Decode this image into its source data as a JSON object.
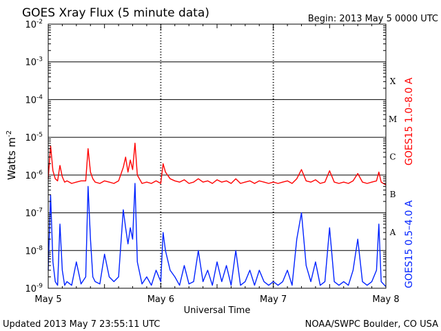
{
  "header": {
    "title": "GOES Xray Flux (5 minute data)",
    "begin": "Begin:  2013 May 5 0000 UTC"
  },
  "footer": {
    "updated": "Updated 2013 May  7 23:55:11 UTC",
    "credit": "NOAA/SWPC Boulder, CO USA"
  },
  "colors": {
    "long_channel": "#ff0000",
    "short_channel": "#0022ff",
    "axis": "#000000",
    "background": "#ffffff"
  },
  "chart_data": {
    "type": "line",
    "title": "GOES Xray Flux (5 minute data)",
    "xlabel": "Universal Time",
    "ylabel_base": "Watts m",
    "ylabel_sup": "-2",
    "yscale": "log",
    "ylim": [
      1e-09,
      0.01
    ],
    "xlim_hours": [
      0,
      72
    ],
    "grid": true,
    "x_ticks": [
      {
        "hour": 0,
        "label": "May 5"
      },
      {
        "hour": 24,
        "label": "May 6"
      },
      {
        "hour": 48,
        "label": "May 7"
      },
      {
        "hour": 72,
        "label": "May 8"
      }
    ],
    "y_ticks": [
      {
        "exp": -9,
        "base": "10",
        "sup": "-9"
      },
      {
        "exp": -8,
        "base": "10",
        "sup": "-8"
      },
      {
        "exp": -7,
        "base": "10",
        "sup": "-7"
      },
      {
        "exp": -6,
        "base": "10",
        "sup": "-6"
      },
      {
        "exp": -5,
        "base": "10",
        "sup": "-5"
      },
      {
        "exp": -4,
        "base": "10",
        "sup": "-4"
      },
      {
        "exp": -3,
        "base": "10",
        "sup": "-3"
      },
      {
        "exp": -2,
        "base": "10",
        "sup": "-2"
      }
    ],
    "flare_classes": [
      {
        "label": "A",
        "exp": -7.5
      },
      {
        "label": "B",
        "exp": -6.5
      },
      {
        "label": "C",
        "exp": -5.5
      },
      {
        "label": "M",
        "exp": -4.5
      },
      {
        "label": "X",
        "exp": -3.5
      }
    ],
    "series": [
      {
        "name": "GOES15 1.0–8.0 A",
        "color": "#ff0000",
        "x": [
          0,
          0.5,
          1,
          1.5,
          2,
          2.5,
          3,
          3.5,
          4,
          5,
          6,
          7,
          8,
          8.5,
          9,
          9.5,
          10,
          11,
          12,
          13,
          14,
          15,
          16,
          16.5,
          17,
          17.5,
          18,
          18.5,
          19,
          20,
          21,
          22,
          23,
          24,
          24.5,
          25,
          26,
          27,
          28,
          29,
          30,
          31,
          32,
          33,
          34,
          35,
          36,
          37,
          38,
          39,
          40,
          41,
          42,
          43,
          44,
          45,
          46,
          47,
          48,
          49,
          50,
          51,
          52,
          53,
          54,
          55,
          56,
          57,
          58,
          59,
          60,
          61,
          62,
          63,
          64,
          65,
          66,
          67,
          68,
          69,
          70,
          70.5,
          71,
          72
        ],
        "y": [
          8e-07,
          6e-06,
          1.3e-06,
          8e-07,
          7e-07,
          1.8e-06,
          9e-07,
          6.5e-07,
          7e-07,
          6e-07,
          6.5e-07,
          7e-07,
          7e-07,
          5e-06,
          1.2e-06,
          8e-07,
          6.5e-07,
          6e-07,
          7e-07,
          6.5e-07,
          6e-07,
          7e-07,
          1.6e-06,
          3e-06,
          1.2e-06,
          2.5e-06,
          1.4e-06,
          7e-06,
          1e-06,
          6e-07,
          6.5e-07,
          6e-07,
          7e-07,
          6e-07,
          2e-06,
          1.2e-06,
          8e-07,
          7e-07,
          6.5e-07,
          7.5e-07,
          6e-07,
          6.5e-07,
          8e-07,
          6.5e-07,
          7e-07,
          6e-07,
          7.5e-07,
          6.5e-07,
          7e-07,
          6e-07,
          8e-07,
          6e-07,
          6.5e-07,
          7e-07,
          6e-07,
          7e-07,
          6.5e-07,
          6e-07,
          6.5e-07,
          6e-07,
          6.5e-07,
          7e-07,
          6e-07,
          8e-07,
          1.4e-06,
          7e-07,
          6.5e-07,
          7.5e-07,
          6e-07,
          6.5e-07,
          1.3e-06,
          6.5e-07,
          6e-07,
          6.5e-07,
          6e-07,
          7e-07,
          1.1e-06,
          6.5e-07,
          6e-07,
          6.5e-07,
          7e-07,
          1.2e-06,
          6.5e-07,
          5.5e-07
        ]
      },
      {
        "name": "GOES15 0.5–4.0 A",
        "color": "#0022ff",
        "x": [
          0,
          0.5,
          1,
          1.5,
          2,
          2.5,
          3,
          3.5,
          4,
          5,
          6,
          7,
          8,
          8.5,
          9,
          9.5,
          10,
          11,
          12,
          13,
          14,
          15,
          16,
          16.5,
          17,
          17.5,
          18,
          18.5,
          19,
          20,
          21,
          22,
          23,
          24,
          24.5,
          25,
          26,
          27,
          28,
          29,
          30,
          31,
          32,
          33,
          34,
          35,
          36,
          37,
          38,
          39,
          40,
          41,
          42,
          43,
          44,
          45,
          46,
          47,
          48,
          49,
          50,
          51,
          52,
          53,
          54,
          55,
          56,
          57,
          58,
          59,
          60,
          61,
          62,
          63,
          64,
          65,
          66,
          67,
          68,
          69,
          70,
          70.5,
          71,
          72
        ],
        "y": [
          3e-09,
          3e-07,
          5e-09,
          1.5e-09,
          1.2e-09,
          5e-08,
          3e-09,
          1.2e-09,
          1.5e-09,
          1.2e-09,
          5e-09,
          1.3e-09,
          2e-09,
          5e-07,
          2e-08,
          2e-09,
          1.5e-09,
          1.3e-09,
          8e-09,
          2e-09,
          1.5e-09,
          2e-09,
          1.2e-07,
          4e-08,
          1.5e-08,
          4e-08,
          2e-08,
          6e-07,
          5e-09,
          1.3e-09,
          2e-09,
          1.2e-09,
          3e-09,
          1.5e-09,
          3e-08,
          1e-08,
          3e-09,
          2e-09,
          1.2e-09,
          4e-09,
          1.3e-09,
          1.5e-09,
          1e-08,
          1.5e-09,
          3e-09,
          1.2e-09,
          5e-09,
          1.5e-09,
          4e-09,
          1.2e-09,
          1e-08,
          1.2e-09,
          1.5e-09,
          3e-09,
          1.2e-09,
          3e-09,
          1.5e-09,
          1.2e-09,
          1.5e-09,
          1.2e-09,
          1.5e-09,
          3e-09,
          1.2e-09,
          2e-08,
          1e-07,
          4e-09,
          1.5e-09,
          5e-09,
          1.2e-09,
          1.5e-09,
          4e-08,
          1.5e-09,
          1.2e-09,
          1.5e-09,
          1.2e-09,
          3e-09,
          2e-08,
          1.5e-09,
          1.2e-09,
          1.5e-09,
          3e-09,
          5e-08,
          1.5e-09,
          1.1e-09
        ]
      }
    ]
  }
}
